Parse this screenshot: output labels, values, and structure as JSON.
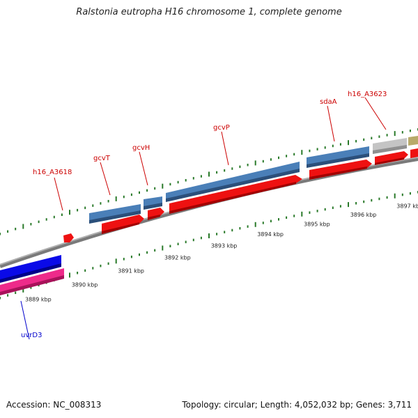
{
  "title": "Ralstonia eutropha H16 chromosome 1, complete genome",
  "footer": {
    "accession": "Accession: NC_008313",
    "summary": "Topology: circular; Length: 4,052,032 bp; Genes: 3,711"
  },
  "scale": {
    "unit": "kbp",
    "ticks": [
      {
        "kbp": 3889,
        "label": "3889 kbp"
      },
      {
        "kbp": 3890,
        "label": "3890 kbp"
      },
      {
        "kbp": 3891,
        "label": "3891 kbp"
      },
      {
        "kbp": 3892,
        "label": "3892 kbp"
      },
      {
        "kbp": 3893,
        "label": "3893 kbp"
      },
      {
        "kbp": 3894,
        "label": "3894 kbp"
      },
      {
        "kbp": 3895,
        "label": "3895 kbp"
      },
      {
        "kbp": 3896,
        "label": "3896 kbp"
      },
      {
        "kbp": 3897,
        "label": "3897 kbp"
      }
    ]
  },
  "genes": [
    {
      "name": "uvrD3",
      "color": "#0000cc"
    },
    {
      "name": "h16_A3618",
      "color": "#cc0000"
    },
    {
      "name": "gcvT",
      "color": "#cc0000"
    },
    {
      "name": "gcvH",
      "color": "#cc0000"
    },
    {
      "name": "gcvP",
      "color": "#cc0000"
    },
    {
      "name": "sdaA",
      "color": "#cc0000"
    },
    {
      "name": "h16_A3623",
      "color": "#cc0000"
    }
  ],
  "colors": {
    "backbone": "#8c8c8c",
    "cds": "#ee1111",
    "gene_feature": "#4a7fb8",
    "blue_feature": "#0a0ae8",
    "pink_feature": "#ee2a8a",
    "gray_feature": "#c4c4c4",
    "olive_feature": "#b8aa6a",
    "tick": "#2a7a2a"
  }
}
